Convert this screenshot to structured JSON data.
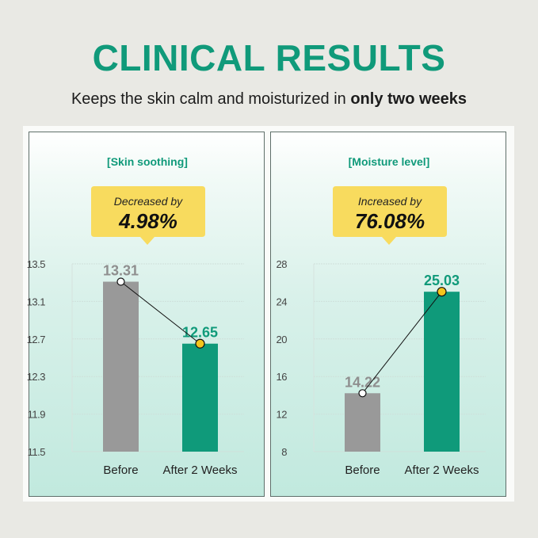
{
  "header": {
    "title": "CLINICAL RESULTS",
    "subtitle_plain": "Keeps the skin calm and moisturized in ",
    "subtitle_bold": "only two weeks"
  },
  "colors": {
    "accent": "#109a7a",
    "before_bar": "#999999",
    "after_bar": "#0f9a7a",
    "callout": "#f8db5e",
    "dot_after": "#f4c51c"
  },
  "chart_data": [
    {
      "type": "bar",
      "title": "[Skin soothing]",
      "callout_label": "Decreased by",
      "callout_value": "4.98%",
      "categories": [
        "Before",
        "After 2 Weeks"
      ],
      "values": [
        13.31,
        12.65
      ],
      "value_labels": [
        "13.31",
        "12.65"
      ],
      "ylim": [
        11.5,
        13.5
      ],
      "yticks": [
        "13.5",
        "13.1",
        "12.7",
        "12.3",
        "11.9",
        "11.5"
      ],
      "ytick_values": [
        13.5,
        13.1,
        12.7,
        12.3,
        11.9,
        11.5
      ],
      "grid": true
    },
    {
      "type": "bar",
      "title": "[Moisture level]",
      "callout_label": "Increased by",
      "callout_value": "76.08%",
      "categories": [
        "Before",
        "After 2 Weeks"
      ],
      "values": [
        14.22,
        25.03
      ],
      "value_labels": [
        "14.22",
        "25.03"
      ],
      "ylim": [
        8,
        28
      ],
      "yticks": [
        "28",
        "24",
        "20",
        "16",
        "12",
        "8"
      ],
      "ytick_values": [
        28,
        24,
        20,
        16,
        12,
        8
      ],
      "grid": true
    }
  ]
}
